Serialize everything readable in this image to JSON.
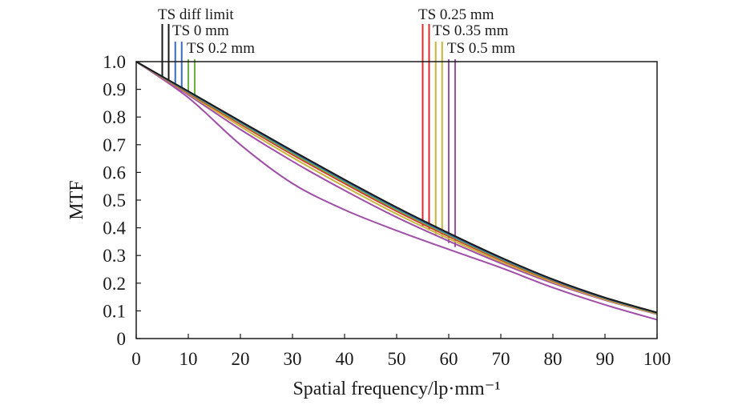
{
  "chart_data": {
    "type": "line",
    "title": "",
    "xlabel": "Spatial frequency/lp·mm⁻¹",
    "ylabel": "MTF",
    "xlim": [
      0,
      100
    ],
    "ylim": [
      0,
      1.0
    ],
    "x_ticks": [
      0,
      10,
      20,
      30,
      40,
      50,
      60,
      70,
      80,
      90,
      100
    ],
    "x_tick_labels": [
      "0",
      "10",
      "20",
      "30",
      "40",
      "50",
      "60",
      "70",
      "80",
      "90",
      "100"
    ],
    "y_ticks": [
      0,
      0.1,
      0.2,
      0.3,
      0.4,
      0.5,
      0.6,
      0.7,
      0.8,
      0.9,
      1.0
    ],
    "y_tick_labels": [
      "0",
      "0.1",
      "0.2",
      "0.3",
      "0.4",
      "0.5",
      "0.6",
      "0.7",
      "0.8",
      "0.9",
      "1.0"
    ],
    "grid": false,
    "legend": "top, leader lines to curves",
    "x": [
      0,
      10,
      20,
      30,
      40,
      50,
      60,
      70,
      80,
      90,
      100
    ],
    "series": [
      {
        "name": "TS diff limit",
        "color": "#1a1a1a",
        "leader_x": 5,
        "values": [
          1.0,
          0.893,
          0.785,
          0.678,
          0.574,
          0.474,
          0.381,
          0.293,
          0.214,
          0.148,
          0.094
        ]
      },
      {
        "name": "TS 0 mm",
        "color": "#3a6bbf",
        "leader_x": 7.5,
        "values": [
          1.0,
          0.891,
          0.782,
          0.674,
          0.57,
          0.47,
          0.377,
          0.29,
          0.212,
          0.146,
          0.093
        ]
      },
      {
        "name": "TS 0.2 mm",
        "color": "#6db33f",
        "leader_x": 10,
        "values": [
          1.0,
          0.889,
          0.778,
          0.669,
          0.565,
          0.465,
          0.373,
          0.287,
          0.21,
          0.145,
          0.092
        ]
      },
      {
        "name": "TS 0.25 mm",
        "color": "#e02a2a",
        "leader_x": 55,
        "values": [
          1.0,
          0.887,
          0.774,
          0.664,
          0.56,
          0.46,
          0.369,
          0.284,
          0.208,
          0.144,
          0.091
        ]
      },
      {
        "name": "TS 0.35 mm",
        "color": "#c8b43a",
        "leader_x": 57.5,
        "values": [
          1.0,
          0.884,
          0.766,
          0.654,
          0.549,
          0.45,
          0.361,
          0.278,
          0.204,
          0.141,
          0.089
        ]
      },
      {
        "name": "TS 0.5 mm",
        "color": "#a04ea8",
        "leader_x": 60,
        "values": [
          1.0,
          0.88,
          0.755,
          0.64,
          0.535,
          0.438,
          0.352,
          0.272,
          0.2,
          0.139,
          0.088
        ]
      },
      {
        "name": "",
        "color": "#e0892a",
        "values": [
          1.0,
          0.89,
          0.78,
          0.672,
          0.568,
          0.468,
          0.375,
          0.289,
          0.211,
          0.145,
          0.092
        ]
      },
      {
        "name": "",
        "color": "#a04ea8",
        "values": [
          1.0,
          0.87,
          0.7,
          0.56,
          0.465,
          0.39,
          0.322,
          0.256,
          0.184,
          0.122,
          0.068
        ]
      }
    ]
  }
}
